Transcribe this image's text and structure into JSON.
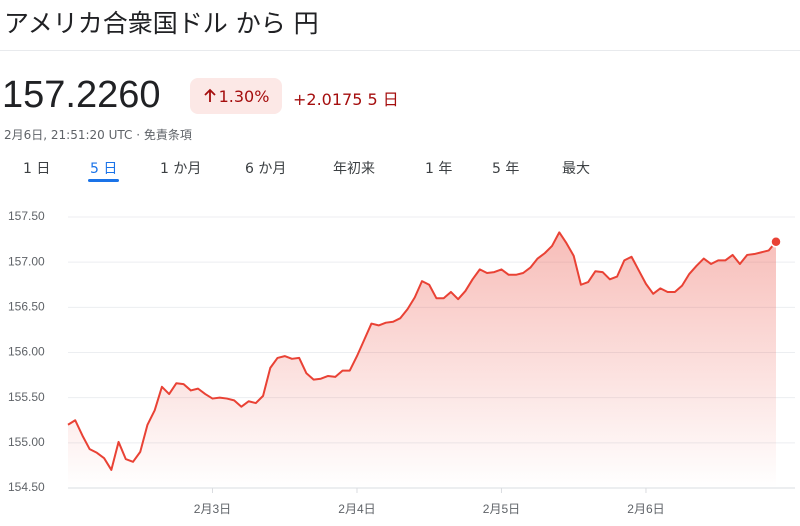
{
  "header": {
    "title": "アメリカ合衆国ドル から 円",
    "price": "157.2260",
    "change_percent": "1.30%",
    "change_value": "+2.0175",
    "change_period": "5 日",
    "timestamp": "2月6日, 21:51:20 UTC · 免責条項"
  },
  "tabs": {
    "items": [
      "1 日",
      "5 日",
      "1 か月",
      "6 か月",
      "年初来",
      "1 年",
      "5 年",
      "最大"
    ],
    "selected": "5 日"
  },
  "chart_data": {
    "type": "line",
    "color": "#e94235",
    "grid": true,
    "categories": [
      null,
      null,
      null,
      null,
      null,
      null,
      null,
      null,
      null,
      null,
      null,
      null,
      null,
      null,
      null,
      null,
      null,
      null,
      null,
      null,
      "2月3日",
      null,
      null,
      null,
      null,
      null,
      null,
      null,
      null,
      null,
      null,
      null,
      null,
      null,
      null,
      null,
      null,
      null,
      null,
      null,
      "2月4日",
      null,
      null,
      null,
      null,
      null,
      null,
      null,
      null,
      null,
      null,
      null,
      null,
      null,
      null,
      null,
      null,
      null,
      null,
      null,
      "2月5日",
      null,
      null,
      null,
      null,
      null,
      null,
      null,
      null,
      null,
      null,
      null,
      null,
      null,
      null,
      null,
      null,
      null,
      null,
      null,
      "2月6日",
      null,
      null,
      null,
      null,
      null,
      null,
      null,
      null,
      null,
      null,
      null,
      null,
      null,
      null,
      null,
      null,
      null,
      null
    ],
    "values": [
      155.2,
      155.25,
      155.08,
      154.93,
      154.89,
      154.83,
      154.7,
      155.01,
      154.82,
      154.79,
      154.9,
      155.2,
      155.36,
      155.62,
      155.54,
      155.66,
      155.65,
      155.58,
      155.6,
      155.54,
      155.49,
      155.5,
      155.49,
      155.47,
      155.4,
      155.46,
      155.44,
      155.52,
      155.83,
      155.94,
      155.96,
      155.93,
      155.94,
      155.77,
      155.7,
      155.71,
      155.74,
      155.73,
      155.8,
      155.8,
      155.96,
      156.14,
      156.32,
      156.3,
      156.33,
      156.34,
      156.38,
      156.48,
      156.61,
      156.79,
      156.75,
      156.6,
      156.6,
      156.67,
      156.59,
      156.68,
      156.81,
      156.92,
      156.88,
      156.89,
      156.92,
      156.86,
      156.86,
      156.88,
      156.94,
      157.04,
      157.1,
      157.18,
      157.33,
      157.21,
      157.07,
      156.75,
      156.78,
      156.9,
      156.89,
      156.81,
      156.84,
      157.02,
      157.06,
      156.91,
      156.76,
      156.65,
      156.71,
      156.67,
      156.67,
      156.74,
      156.87,
      156.96,
      157.04,
      156.98,
      157.02,
      157.02,
      157.08,
      156.98,
      157.08,
      157.09,
      157.11,
      157.13,
      157.226
    ],
    "ylim": [
      154.5,
      157.5
    ],
    "yticks": [
      {
        "value": 154.5,
        "label": "154.50"
      },
      {
        "value": 155,
        "label": "155.00"
      },
      {
        "value": 155.5,
        "label": "155.50"
      },
      {
        "value": 156,
        "label": "156.00"
      },
      {
        "value": 156.5,
        "label": "156.50"
      },
      {
        "value": 157,
        "label": "157.00"
      },
      {
        "value": 157.5,
        "label": "157.50"
      }
    ]
  }
}
